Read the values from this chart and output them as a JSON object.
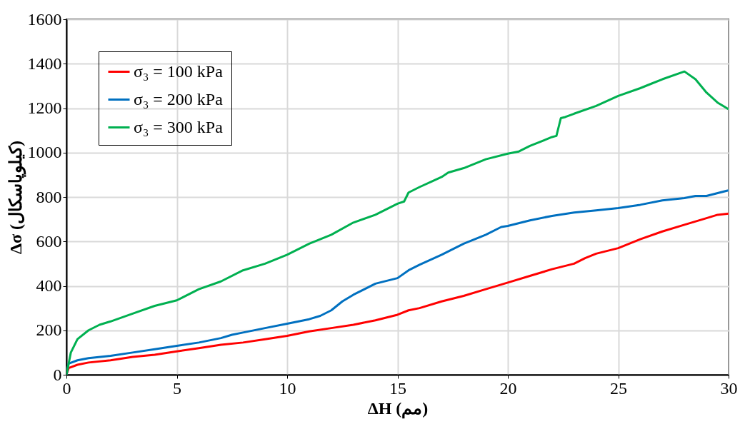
{
  "chart_data": {
    "type": "line",
    "xlabel": "ΔH (مم)",
    "ylabel": "Δσ (کیلوپاسکال)",
    "xlim": [
      0,
      30
    ],
    "xticks": [
      0,
      5,
      10,
      15,
      20,
      25,
      30
    ],
    "ylim": [
      0,
      1600
    ],
    "yticks": [
      0,
      200,
      400,
      600,
      800,
      1000,
      1200,
      1400,
      1600
    ],
    "grid": true,
    "legend": "top left",
    "marker": "none",
    "line_style": "solid",
    "series": [
      {
        "name": "σ₃ = 100 kPa",
        "color": "#ff0000",
        "x": [
          0,
          0.1,
          0.5,
          1,
          2,
          3,
          4,
          5,
          6,
          7,
          8,
          9,
          10,
          11,
          12,
          13,
          14,
          15,
          15.5,
          16,
          17,
          18,
          19,
          20,
          21,
          22,
          23,
          23.5,
          24,
          25,
          26,
          27,
          28,
          29,
          29.5,
          30
        ],
        "values": [
          0,
          30,
          45,
          55,
          65,
          80,
          90,
          105,
          120,
          135,
          145,
          160,
          175,
          195,
          210,
          225,
          245,
          270,
          290,
          300,
          330,
          355,
          385,
          415,
          445,
          475,
          500,
          525,
          545,
          570,
          610,
          645,
          675,
          705,
          720,
          725
        ]
      },
      {
        "name": "σ₃ = 200 kPa",
        "color": "#0070c0",
        "x": [
          0,
          0.1,
          0.5,
          1,
          2,
          3,
          4,
          5,
          6,
          7,
          7.5,
          8,
          9,
          10,
          11,
          11.5,
          12,
          12.5,
          13,
          14,
          15,
          15.5,
          16,
          17,
          18,
          18.5,
          19,
          19.7,
          20,
          21,
          22,
          23,
          24,
          25,
          26,
          27,
          28,
          28.5,
          29,
          30
        ],
        "values": [
          0,
          50,
          65,
          75,
          85,
          100,
          115,
          130,
          145,
          165,
          180,
          190,
          210,
          230,
          250,
          265,
          290,
          330,
          360,
          410,
          435,
          470,
          495,
          540,
          590,
          610,
          630,
          665,
          670,
          695,
          715,
          730,
          740,
          750,
          765,
          785,
          795,
          805,
          805,
          830
        ]
      },
      {
        "name": "σ₃ = 300 kPa",
        "color": "#00b050",
        "x": [
          0,
          0.2,
          0.5,
          1,
          1.5,
          2,
          3,
          4,
          5,
          6,
          7,
          8,
          9,
          10,
          11,
          12,
          13,
          14,
          15,
          15.3,
          15.5,
          16,
          17,
          17.3,
          18,
          19,
          20,
          20.5,
          21,
          22,
          22.2,
          22.4,
          22.6,
          23,
          24,
          25,
          26,
          26.5,
          27,
          28,
          28.5,
          29,
          29.5,
          30
        ],
        "values": [
          0,
          100,
          160,
          200,
          225,
          240,
          275,
          310,
          335,
          385,
          420,
          470,
          500,
          540,
          590,
          630,
          685,
          720,
          770,
          780,
          820,
          845,
          890,
          910,
          930,
          970,
          995,
          1005,
          1030,
          1070,
          1075,
          1155,
          1160,
          1175,
          1210,
          1255,
          1290,
          1310,
          1330,
          1365,
          1330,
          1270,
          1225,
          1195
        ]
      }
    ]
  }
}
